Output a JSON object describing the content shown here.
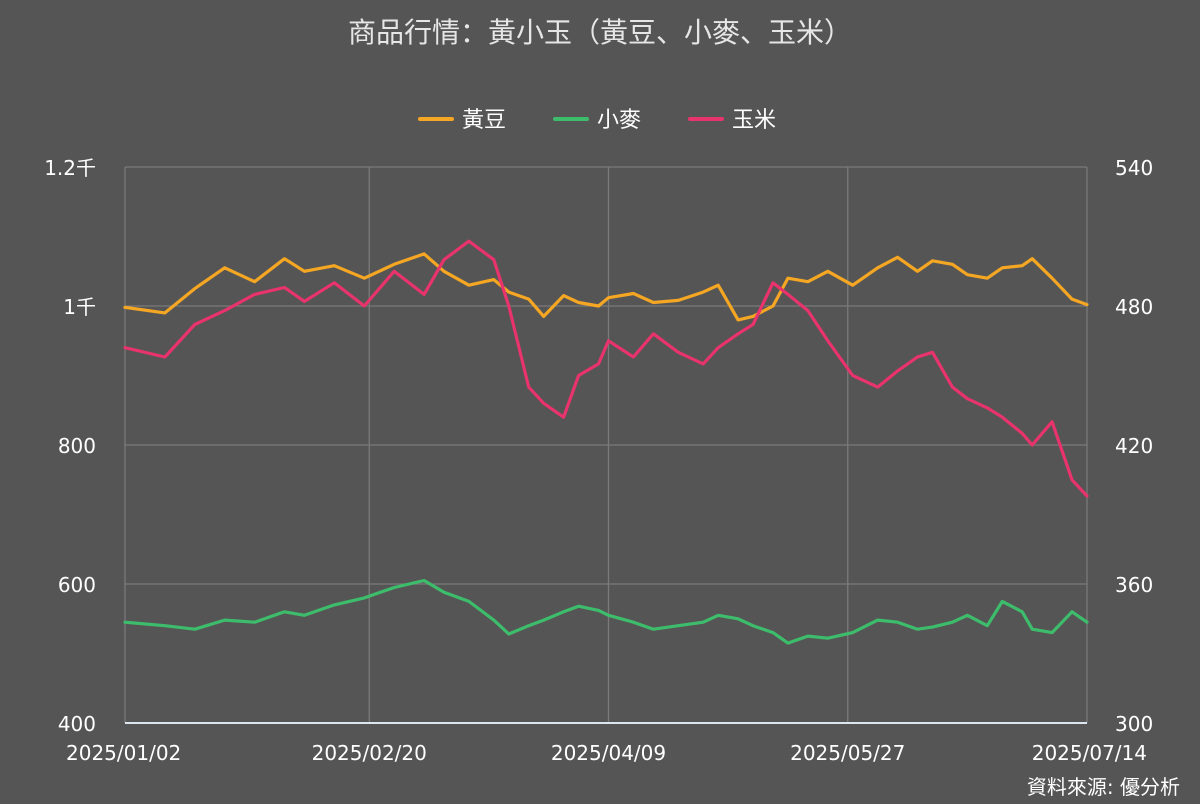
{
  "chart_data": {
    "type": "line",
    "title": "商品行情：黃小玉（黃豆、小麥、玉米）",
    "source": "資料來源: 優分析",
    "x_tick_labels": [
      "2025/01/02",
      "2025/02/20",
      "2025/04/09",
      "2025/05/27",
      "2025/07/14"
    ],
    "x_range": [
      "2025/01/02",
      "2025/07/14"
    ],
    "y_left": {
      "ticks": [
        "400",
        "600",
        "800",
        "1千",
        "1.2千"
      ],
      "range": [
        400,
        1200
      ]
    },
    "y_right": {
      "ticks": [
        "300",
        "360",
        "420",
        "480",
        "540"
      ],
      "range": [
        300,
        540
      ]
    },
    "grid": true,
    "legend_position": "top-center",
    "series": [
      {
        "name": "黃豆",
        "axis": "left",
        "color": "#f5a623",
        "points": [
          [
            "2025/01/02",
            998
          ],
          [
            "2025/01/10",
            990
          ],
          [
            "2025/01/16",
            1025
          ],
          [
            "2025/01/22",
            1055
          ],
          [
            "2025/01/28",
            1035
          ],
          [
            "2025/02/03",
            1068
          ],
          [
            "2025/02/07",
            1050
          ],
          [
            "2025/02/13",
            1058
          ],
          [
            "2025/02/19",
            1040
          ],
          [
            "2025/02/25",
            1060
          ],
          [
            "2025/03/03",
            1075
          ],
          [
            "2025/03/07",
            1050
          ],
          [
            "2025/03/12",
            1030
          ],
          [
            "2025/03/17",
            1038
          ],
          [
            "2025/03/20",
            1020
          ],
          [
            "2025/03/24",
            1010
          ],
          [
            "2025/03/27",
            985
          ],
          [
            "2025/03/31",
            1015
          ],
          [
            "2025/04/03",
            1005
          ],
          [
            "2025/04/07",
            1000
          ],
          [
            "2025/04/09",
            1012
          ],
          [
            "2025/04/14",
            1018
          ],
          [
            "2025/04/18",
            1005
          ],
          [
            "2025/04/23",
            1008
          ],
          [
            "2025/04/28",
            1020
          ],
          [
            "2025/05/01",
            1030
          ],
          [
            "2025/05/05",
            980
          ],
          [
            "2025/05/08",
            985
          ],
          [
            "2025/05/12",
            1000
          ],
          [
            "2025/05/15",
            1040
          ],
          [
            "2025/05/19",
            1035
          ],
          [
            "2025/05/23",
            1050
          ],
          [
            "2025/05/28",
            1030
          ],
          [
            "2025/06/02",
            1055
          ],
          [
            "2025/06/06",
            1070
          ],
          [
            "2025/06/10",
            1050
          ],
          [
            "2025/06/13",
            1065
          ],
          [
            "2025/06/17",
            1060
          ],
          [
            "2025/06/20",
            1045
          ],
          [
            "2025/06/24",
            1040
          ],
          [
            "2025/06/27",
            1055
          ],
          [
            "2025/07/01",
            1058
          ],
          [
            "2025/07/03",
            1068
          ],
          [
            "2025/07/07",
            1040
          ],
          [
            "2025/07/11",
            1010
          ],
          [
            "2025/07/14",
            1002
          ]
        ]
      },
      {
        "name": "小麥",
        "axis": "left",
        "color": "#3dbd6b",
        "points": [
          [
            "2025/01/02",
            545
          ],
          [
            "2025/01/10",
            540
          ],
          [
            "2025/01/16",
            535
          ],
          [
            "2025/01/22",
            548
          ],
          [
            "2025/01/28",
            545
          ],
          [
            "2025/02/03",
            560
          ],
          [
            "2025/02/07",
            555
          ],
          [
            "2025/02/13",
            570
          ],
          [
            "2025/02/19",
            580
          ],
          [
            "2025/02/25",
            595
          ],
          [
            "2025/03/03",
            605
          ],
          [
            "2025/03/07",
            588
          ],
          [
            "2025/03/12",
            575
          ],
          [
            "2025/03/17",
            548
          ],
          [
            "2025/03/20",
            528
          ],
          [
            "2025/03/24",
            540
          ],
          [
            "2025/03/27",
            548
          ],
          [
            "2025/03/31",
            560
          ],
          [
            "2025/04/03",
            568
          ],
          [
            "2025/04/07",
            562
          ],
          [
            "2025/04/09",
            555
          ],
          [
            "2025/04/14",
            545
          ],
          [
            "2025/04/18",
            535
          ],
          [
            "2025/04/23",
            540
          ],
          [
            "2025/04/28",
            545
          ],
          [
            "2025/05/01",
            555
          ],
          [
            "2025/05/05",
            550
          ],
          [
            "2025/05/08",
            540
          ],
          [
            "2025/05/12",
            530
          ],
          [
            "2025/05/15",
            515
          ],
          [
            "2025/05/19",
            525
          ],
          [
            "2025/05/23",
            522
          ],
          [
            "2025/05/28",
            530
          ],
          [
            "2025/06/02",
            548
          ],
          [
            "2025/06/06",
            545
          ],
          [
            "2025/06/10",
            535
          ],
          [
            "2025/06/13",
            538
          ],
          [
            "2025/06/17",
            545
          ],
          [
            "2025/06/20",
            555
          ],
          [
            "2025/06/24",
            540
          ],
          [
            "2025/06/27",
            575
          ],
          [
            "2025/07/01",
            560
          ],
          [
            "2025/07/03",
            535
          ],
          [
            "2025/07/07",
            530
          ],
          [
            "2025/07/11",
            560
          ],
          [
            "2025/07/14",
            545
          ]
        ]
      },
      {
        "name": "玉米",
        "axis": "right",
        "color": "#e8336d",
        "points": [
          [
            "2025/01/02",
            462
          ],
          [
            "2025/01/10",
            458
          ],
          [
            "2025/01/16",
            472
          ],
          [
            "2025/01/22",
            478
          ],
          [
            "2025/01/28",
            485
          ],
          [
            "2025/02/03",
            488
          ],
          [
            "2025/02/07",
            482
          ],
          [
            "2025/02/13",
            490
          ],
          [
            "2025/02/19",
            480
          ],
          [
            "2025/02/25",
            495
          ],
          [
            "2025/03/03",
            485
          ],
          [
            "2025/03/07",
            500
          ],
          [
            "2025/03/12",
            508
          ],
          [
            "2025/03/17",
            500
          ],
          [
            "2025/03/20",
            480
          ],
          [
            "2025/03/24",
            445
          ],
          [
            "2025/03/27",
            438
          ],
          [
            "2025/03/31",
            432
          ],
          [
            "2025/04/03",
            450
          ],
          [
            "2025/04/07",
            455
          ],
          [
            "2025/04/09",
            465
          ],
          [
            "2025/04/14",
            458
          ],
          [
            "2025/04/18",
            468
          ],
          [
            "2025/04/23",
            460
          ],
          [
            "2025/04/28",
            455
          ],
          [
            "2025/05/01",
            462
          ],
          [
            "2025/05/05",
            468
          ],
          [
            "2025/05/08",
            472
          ],
          [
            "2025/05/12",
            490
          ],
          [
            "2025/05/15",
            485
          ],
          [
            "2025/05/19",
            478
          ],
          [
            "2025/05/23",
            465
          ],
          [
            "2025/05/28",
            450
          ],
          [
            "2025/06/02",
            445
          ],
          [
            "2025/06/06",
            452
          ],
          [
            "2025/06/10",
            458
          ],
          [
            "2025/06/13",
            460
          ],
          [
            "2025/06/17",
            445
          ],
          [
            "2025/06/20",
            440
          ],
          [
            "2025/06/24",
            436
          ],
          [
            "2025/06/27",
            432
          ],
          [
            "2025/07/01",
            425
          ],
          [
            "2025/07/03",
            420
          ],
          [
            "2025/07/07",
            430
          ],
          [
            "2025/07/11",
            405
          ],
          [
            "2025/07/14",
            398
          ]
        ]
      }
    ]
  }
}
